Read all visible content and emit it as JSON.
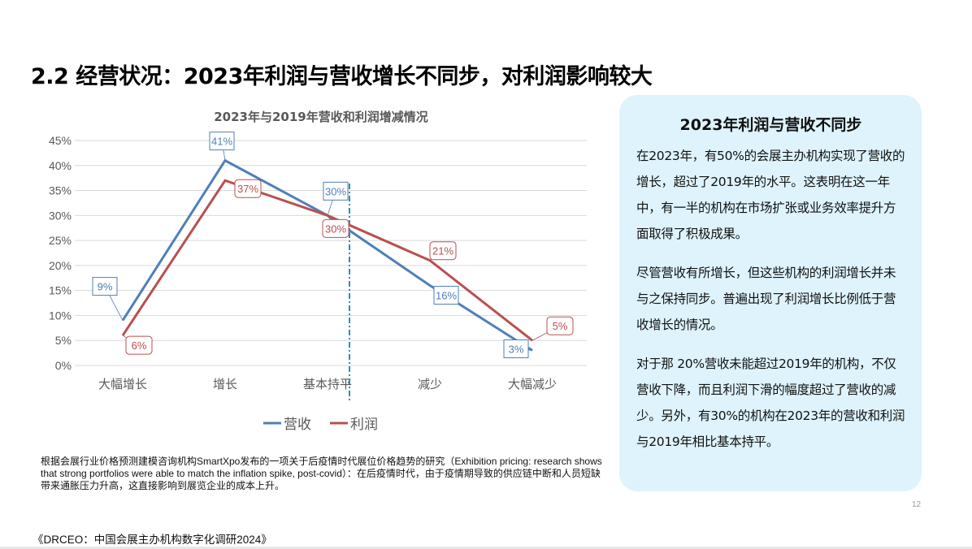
{
  "title": "2.2 经营状况：2023年利润与营收增长不同步，对利润影响较大",
  "chart_data": {
    "type": "line",
    "title": "2023年与2019年营收和利润增减情况",
    "categories": [
      "大幅增长",
      "增长",
      "基本持平",
      "减少",
      "大幅减少"
    ],
    "series": [
      {
        "name": "营收",
        "values": [
          9,
          41,
          30,
          16,
          3
        ],
        "labels": [
          "9%",
          "41%",
          "30%",
          "16%",
          "3%"
        ],
        "color": "#4f7fb8"
      },
      {
        "name": "利润",
        "values": [
          6,
          37,
          30,
          21,
          5
        ],
        "labels": [
          "6%",
          "37%",
          "30%",
          "21%",
          "5%"
        ],
        "color": "#b9504e"
      }
    ],
    "yticks": [
      "0%",
      "5%",
      "10%",
      "15%",
      "20%",
      "25%",
      "30%",
      "35%",
      "40%",
      "45%"
    ],
    "ylim": [
      0,
      45
    ],
    "grid": true,
    "legend": "bottom",
    "reference_line_color": "#2a8fb8"
  },
  "panel": {
    "heading": "2023年利润与营收不同步",
    "paragraphs": [
      "在2023年，有50%的会展主办机构实现了营收的增长，超过了2019年的水平。这表明在这一年中，有一半的机构在市场扩张或业务效率提升方面取得了积极成果。",
      "尽管营收有所增长，但这些机构的利润增长并未与之保持同步。普遍出现了利润增长比例低于营收增长的情况。",
      "对于那 20%营收未能超过2019年的机构，不仅营收下降，而且利润下滑的幅度超过了营收的减少。另外，有30%的机构在2023年的营收和利润与2019年相比基本持平。"
    ]
  },
  "note": "根据会展行业价格预测建模咨询机构SmartXpo发布的一项关于后疫情时代展位价格趋势的研究（Exhibition pricing: research shows that strong portfolios were able to match the inflation spike, post-covid）：在后疫情时代，由于疫情期导致的供应链中断和人员短缺带来通胀压力升高，这直接影响到展览企业的成本上升。",
  "source": "《DRCEO：中国会展主办机构数字化调研2024》",
  "page_number": "12"
}
